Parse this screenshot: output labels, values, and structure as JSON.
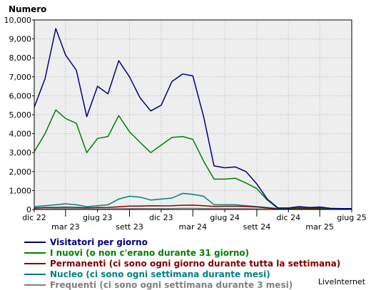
{
  "chart_data": {
    "type": "line",
    "ylabel": "Numero",
    "ylim": [
      0,
      10000
    ],
    "yticks": [
      "0",
      "1,000",
      "2,000",
      "3,000",
      "4,000",
      "5,000",
      "6,000",
      "7,000",
      "8,000",
      "9,000",
      "10,000"
    ],
    "ytick_values": [
      0,
      1000,
      2000,
      3000,
      4000,
      5000,
      6000,
      7000,
      8000,
      9000,
      10000
    ],
    "xlim": [
      "2022-12-01",
      "2025-06-01"
    ],
    "xticks": [
      {
        "label": "dic 22",
        "date": "2022-12-01",
        "row": 0
      },
      {
        "label": "mar 23",
        "date": "2023-03-01",
        "row": 1
      },
      {
        "label": "giug 23",
        "date": "2023-06-01",
        "row": 0
      },
      {
        "label": "sett 23",
        "date": "2023-09-01",
        "row": 1
      },
      {
        "label": "dic 23",
        "date": "2023-12-01",
        "row": 0
      },
      {
        "label": "mar 24",
        "date": "2024-03-01",
        "row": 1
      },
      {
        "label": "giug 24",
        "date": "2024-06-01",
        "row": 0
      },
      {
        "label": "sett 24",
        "date": "2024-09-01",
        "row": 1
      },
      {
        "label": "dic 24",
        "date": "2024-12-01",
        "row": 0
      },
      {
        "label": "mar 25",
        "date": "2025-03-01",
        "row": 1
      },
      {
        "label": "giug 25",
        "date": "2025-06-01",
        "row": 0
      }
    ],
    "grid": true,
    "legend_position": "bottom",
    "x": [
      "2022-12-01",
      "2023-01-01",
      "2023-02-01",
      "2023-03-01",
      "2023-04-01",
      "2023-05-01",
      "2023-06-01",
      "2023-07-01",
      "2023-08-01",
      "2023-09-01",
      "2023-10-01",
      "2023-11-01",
      "2023-12-01",
      "2024-01-01",
      "2024-02-01",
      "2024-03-01",
      "2024-04-01",
      "2024-05-01",
      "2024-06-01",
      "2024-07-01",
      "2024-08-01",
      "2024-09-01",
      "2024-10-01",
      "2024-11-01",
      "2024-12-01",
      "2025-01-01",
      "2025-02-01",
      "2025-03-01",
      "2025-04-01",
      "2025-05-01",
      "2025-06-01"
    ],
    "series": [
      {
        "name": "Visitatori per giorno",
        "color": "#000080",
        "values": [
          5400,
          6900,
          9550,
          8150,
          7350,
          4900,
          6500,
          6100,
          7850,
          7000,
          5900,
          5200,
          5500,
          6750,
          7150,
          7050,
          4900,
          2300,
          2200,
          2250,
          2000,
          1350,
          550,
          80,
          80,
          150,
          100,
          130,
          60,
          50,
          50
        ]
      },
      {
        "name": "I nuovi (o non c'erano durante 31 giorno)",
        "color": "#008000",
        "values": [
          3050,
          4000,
          5250,
          4800,
          4550,
          3000,
          3750,
          3850,
          4950,
          4100,
          3550,
          3000,
          3400,
          3800,
          3850,
          3700,
          2550,
          1600,
          1600,
          1650,
          1400,
          1100,
          500,
          60,
          60,
          110,
          80,
          100,
          40,
          30,
          30
        ]
      },
      {
        "name": "Permanenti (ci sono ogni giorno durante tutta la settimana)",
        "color": "#800000",
        "values": [
          80,
          100,
          110,
          120,
          110,
          90,
          100,
          110,
          140,
          180,
          180,
          200,
          190,
          200,
          220,
          230,
          200,
          160,
          170,
          170,
          160,
          130,
          80,
          30,
          30,
          30,
          30,
          30,
          20,
          20,
          20
        ]
      },
      {
        "name": "Nucleo (ci sono ogni settimana durante mesi)",
        "color": "#008080",
        "values": [
          150,
          200,
          250,
          300,
          250,
          150,
          200,
          250,
          550,
          700,
          650,
          500,
          550,
          600,
          850,
          800,
          700,
          250,
          250,
          250,
          200,
          150,
          100,
          50,
          50,
          60,
          50,
          60,
          30,
          20,
          20
        ]
      },
      {
        "name": "Frequenti (ci sono ogni settimana durante 3 mesi)",
        "color": "#808080",
        "values": [
          20,
          30,
          40,
          40,
          40,
          30,
          30,
          30,
          40,
          50,
          50,
          50,
          50,
          50,
          60,
          60,
          50,
          40,
          40,
          40,
          40,
          30,
          20,
          10,
          10,
          10,
          10,
          10,
          10,
          10,
          10
        ]
      }
    ]
  },
  "credit": "LiveInternet"
}
